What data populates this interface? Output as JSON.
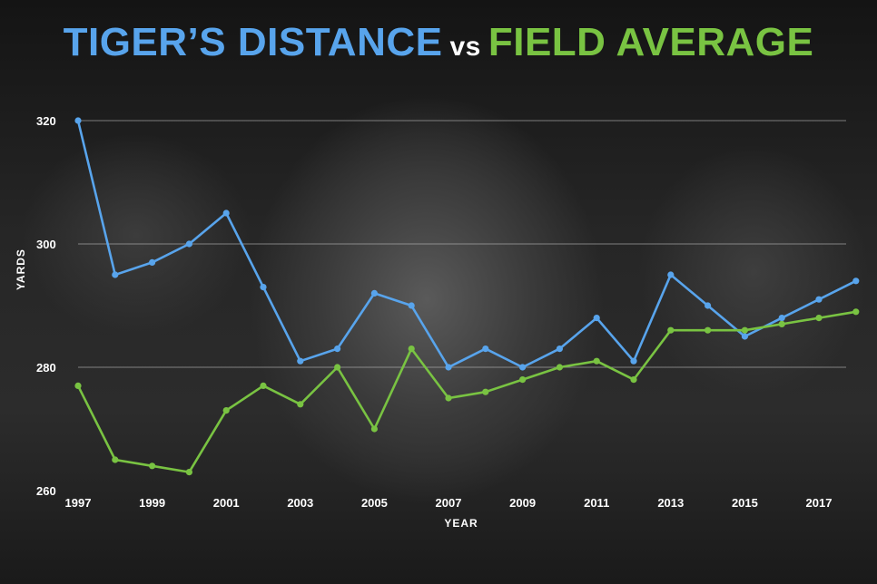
{
  "title": {
    "part1": "TIGER’S DISTANCE",
    "vs": "vs",
    "part2": "FIELD AVERAGE"
  },
  "colors": {
    "tiger": "#58a4ec",
    "field": "#79c342",
    "grid": "#bdbdbd",
    "text": "#ffffff"
  },
  "chart_data": {
    "type": "line",
    "title": "TIGER’S DISTANCE vs FIELD AVERAGE",
    "xlabel": "YEAR",
    "ylabel": "YARDS",
    "x": [
      1997,
      1998,
      1999,
      2000,
      2001,
      2002,
      2003,
      2004,
      2005,
      2006,
      2007,
      2008,
      2009,
      2010,
      2011,
      2012,
      2013,
      2014,
      2015,
      2016,
      2017,
      2018
    ],
    "xticks": [
      "1997",
      "1999",
      "2001",
      "2003",
      "2005",
      "2007",
      "2009",
      "2011",
      "2013",
      "2015",
      "2017"
    ],
    "yticks": [
      "260",
      "280",
      "300",
      "320"
    ],
    "ylim": [
      260,
      320
    ],
    "grid": true,
    "series": [
      {
        "name": "TIGER’S DISTANCE",
        "color": "#58a4ec",
        "values": [
          320,
          295,
          297,
          300,
          305,
          293,
          281,
          283,
          292,
          290,
          280,
          283,
          280,
          283,
          288,
          281,
          295,
          290,
          285,
          288,
          291,
          294
        ]
      },
      {
        "name": "FIELD AVERAGE",
        "color": "#79c342",
        "values": [
          277,
          265,
          264,
          263,
          273,
          277,
          274,
          280,
          270,
          283,
          275,
          276,
          278,
          280,
          281,
          278,
          286,
          286,
          286,
          287,
          288,
          289
        ]
      }
    ]
  }
}
